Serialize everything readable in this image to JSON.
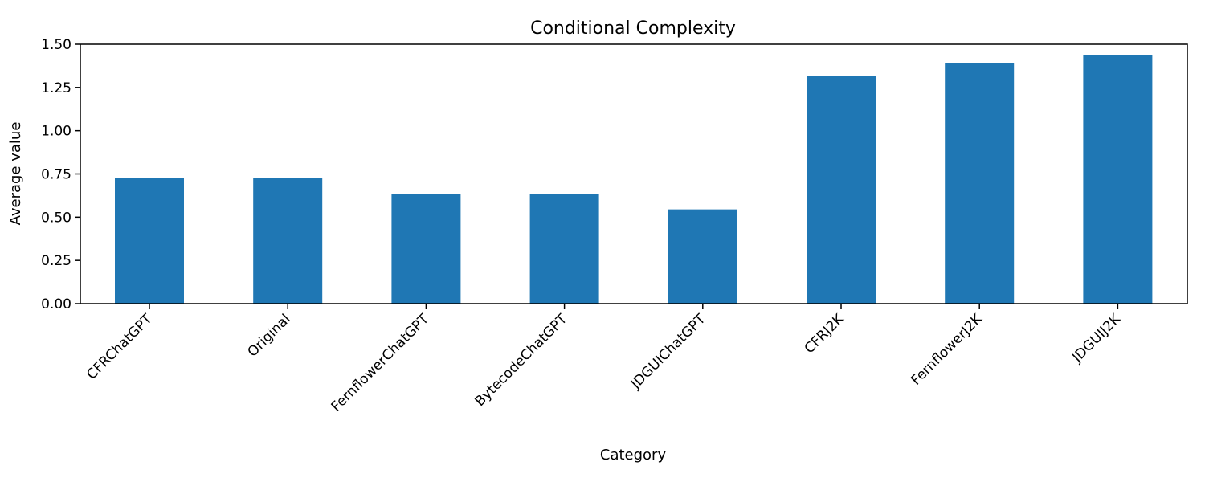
{
  "chart_data": {
    "type": "bar",
    "title": "Conditional Complexity",
    "xlabel": "Category",
    "ylabel": "Average value",
    "categories": [
      "CFRChatGPT",
      "Original",
      "FernflowerChatGPT",
      "BytecodeChatGPT",
      "JDGUIChatGPT",
      "CFRJ2K",
      "FernflowerJ2K",
      "JDGUIJ2K"
    ],
    "values": [
      0.725,
      0.725,
      0.635,
      0.635,
      0.545,
      1.315,
      1.39,
      1.435
    ],
    "ylim": [
      0,
      1.5
    ],
    "yticks": [
      "0.00",
      "0.25",
      "0.50",
      "0.75",
      "1.00",
      "1.25",
      "1.50"
    ],
    "bar_color": "#1f77b4",
    "grid": false,
    "legend": "none"
  }
}
